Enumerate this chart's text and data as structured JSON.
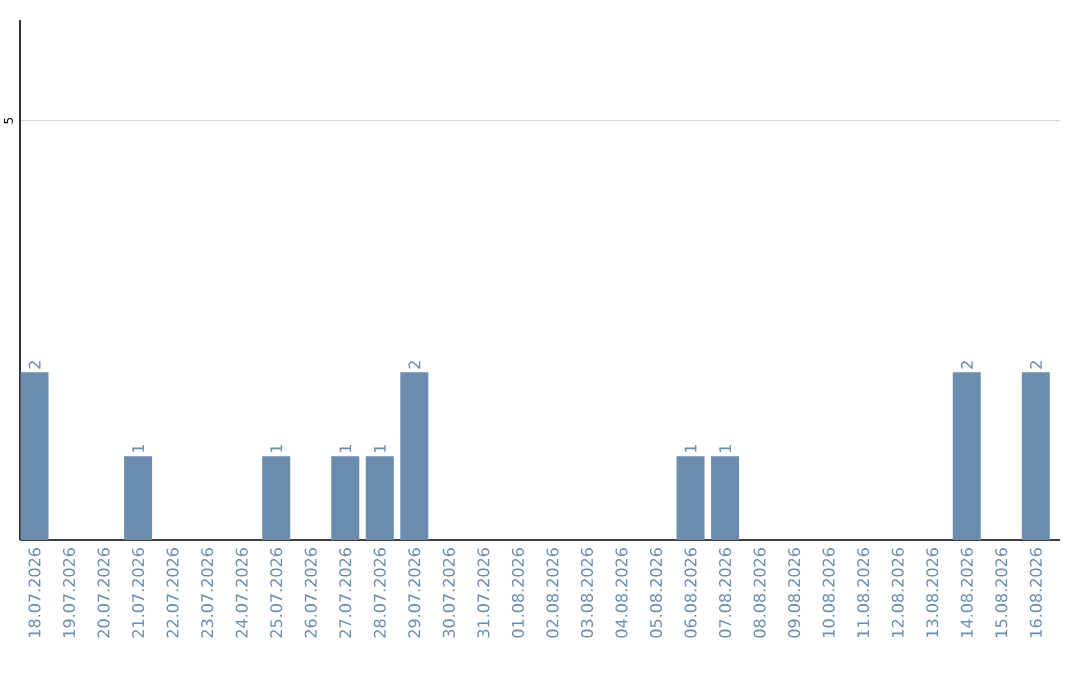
{
  "chart_data": {
    "type": "bar",
    "categories": [
      "18.07.2026",
      "19.07.2026",
      "20.07.2026",
      "21.07.2026",
      "22.07.2026",
      "23.07.2026",
      "24.07.2026",
      "25.07.2026",
      "26.07.2026",
      "27.07.2026",
      "28.07.2026",
      "29.07.2026",
      "30.07.2026",
      "31.07.2026",
      "01.08.2026",
      "02.08.2026",
      "03.08.2026",
      "04.08.2026",
      "05.08.2026",
      "06.08.2026",
      "07.08.2026",
      "08.08.2026",
      "09.08.2026",
      "10.08.2026",
      "11.08.2026",
      "12.08.2026",
      "13.08.2026",
      "14.08.2026",
      "15.08.2026",
      "16.08.2026"
    ],
    "values": [
      2,
      0,
      0,
      1,
      0,
      0,
      0,
      1,
      0,
      1,
      1,
      2,
      0,
      0,
      0,
      0,
      0,
      0,
      0,
      1,
      1,
      0,
      0,
      0,
      0,
      0,
      0,
      2,
      0,
      2
    ],
    "value_labels": [
      "2",
      null,
      null,
      "1",
      null,
      null,
      null,
      "1",
      null,
      "1",
      "1",
      "2",
      null,
      null,
      null,
      null,
      null,
      null,
      null,
      "1",
      "1",
      null,
      null,
      null,
      null,
      null,
      null,
      "2",
      null,
      "2"
    ],
    "color": "#6b8cad",
    "ylim": [
      0,
      6.2
    ],
    "yticks": [
      5
    ],
    "grid": "y"
  }
}
